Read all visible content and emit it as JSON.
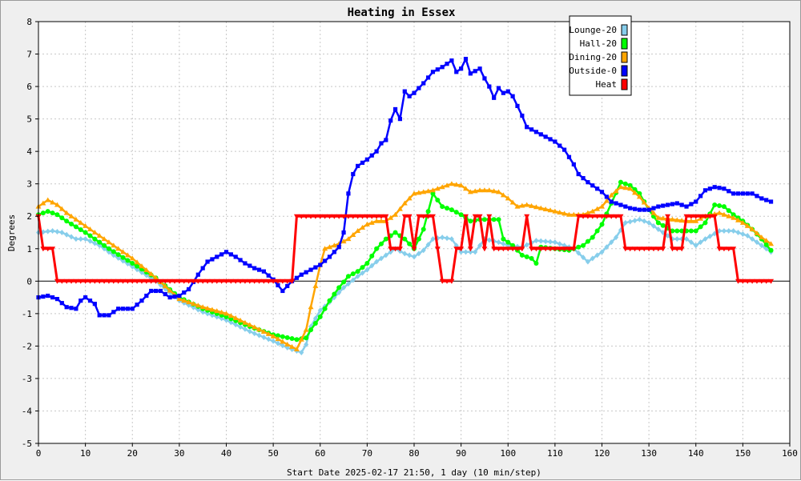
{
  "chart_data": {
    "type": "line",
    "title": "Heating in Essex",
    "xlabel": "Start Date 2025-02-17 21:50, 1 day (10 min/step)",
    "ylabel": "Degrees",
    "xlim": [
      0,
      160
    ],
    "ylim": [
      -5,
      8
    ],
    "x_ticks": [
      0,
      10,
      20,
      30,
      40,
      50,
      60,
      70,
      80,
      90,
      100,
      110,
      120,
      130,
      140,
      150,
      160
    ],
    "y_ticks": [
      -5,
      -4,
      -3,
      -2,
      -1,
      0,
      1,
      2,
      3,
      4,
      5,
      6,
      7,
      8
    ],
    "grid": true,
    "legend_position": "top-right",
    "series": [
      {
        "name": "Lounge-20",
        "color": "#87ceeb",
        "marker": "diamond",
        "points": [
          [
            0,
            1.5
          ],
          [
            3,
            1.55
          ],
          [
            5,
            1.5
          ],
          [
            8,
            1.3
          ],
          [
            10,
            1.3
          ],
          [
            13,
            1.1
          ],
          [
            16,
            0.8
          ],
          [
            20,
            0.45
          ],
          [
            25,
            0
          ],
          [
            30,
            -0.6
          ],
          [
            35,
            -0.95
          ],
          [
            40,
            -1.2
          ],
          [
            45,
            -1.55
          ],
          [
            50,
            -1.85
          ],
          [
            53,
            -2.05
          ],
          [
            56,
            -2.2
          ],
          [
            57,
            -1.95
          ],
          [
            58,
            -1.4
          ],
          [
            60,
            -0.9
          ],
          [
            62,
            -0.65
          ],
          [
            65,
            -0.2
          ],
          [
            68,
            0.15
          ],
          [
            70,
            0.35
          ],
          [
            72,
            0.6
          ],
          [
            74,
            0.8
          ],
          [
            76,
            1.0
          ],
          [
            78,
            0.85
          ],
          [
            80,
            0.75
          ],
          [
            82,
            0.95
          ],
          [
            84,
            1.3
          ],
          [
            86,
            1.35
          ],
          [
            88,
            1.3
          ],
          [
            90,
            0.9
          ],
          [
            93,
            0.9
          ],
          [
            95,
            1.3
          ],
          [
            98,
            1.2
          ],
          [
            100,
            1.1
          ],
          [
            103,
            1.05
          ],
          [
            106,
            1.25
          ],
          [
            110,
            1.2
          ],
          [
            114,
            1.0
          ],
          [
            117,
            0.6
          ],
          [
            120,
            0.9
          ],
          [
            123,
            1.35
          ],
          [
            125,
            1.8
          ],
          [
            128,
            1.9
          ],
          [
            130,
            1.8
          ],
          [
            133,
            1.5
          ],
          [
            135,
            1.3
          ],
          [
            138,
            1.3
          ],
          [
            140,
            1.1
          ],
          [
            142,
            1.3
          ],
          [
            145,
            1.55
          ],
          [
            148,
            1.55
          ],
          [
            151,
            1.4
          ],
          [
            154,
            1.1
          ],
          [
            156,
            0.9
          ]
        ]
      },
      {
        "name": "Hall-20",
        "color": "#00ff00",
        "marker": "circle",
        "points": [
          [
            0,
            2.05
          ],
          [
            2,
            2.15
          ],
          [
            4,
            2.05
          ],
          [
            6,
            1.85
          ],
          [
            10,
            1.5
          ],
          [
            15,
            1.0
          ],
          [
            20,
            0.55
          ],
          [
            25,
            0.1
          ],
          [
            30,
            -0.5
          ],
          [
            35,
            -0.85
          ],
          [
            40,
            -1.1
          ],
          [
            45,
            -1.4
          ],
          [
            50,
            -1.65
          ],
          [
            55,
            -1.8
          ],
          [
            57,
            -1.75
          ],
          [
            58,
            -1.5
          ],
          [
            60,
            -1.1
          ],
          [
            62,
            -0.6
          ],
          [
            64,
            -0.2
          ],
          [
            66,
            0.15
          ],
          [
            68,
            0.3
          ],
          [
            70,
            0.55
          ],
          [
            72,
            1.0
          ],
          [
            74,
            1.3
          ],
          [
            76,
            1.5
          ],
          [
            78,
            1.3
          ],
          [
            80,
            1.0
          ],
          [
            82,
            1.6
          ],
          [
            84,
            2.7
          ],
          [
            86,
            2.3
          ],
          [
            88,
            2.2
          ],
          [
            90,
            2.05
          ],
          [
            92,
            1.85
          ],
          [
            94,
            1.9
          ],
          [
            96,
            1.9
          ],
          [
            98,
            1.9
          ],
          [
            99,
            1.3
          ],
          [
            101,
            1.1
          ],
          [
            103,
            0.8
          ],
          [
            105,
            0.7
          ],
          [
            106,
            0.55
          ],
          [
            107,
            1.05
          ],
          [
            110,
            1.0
          ],
          [
            113,
            0.95
          ],
          [
            116,
            1.1
          ],
          [
            118,
            1.35
          ],
          [
            120,
            1.75
          ],
          [
            122,
            2.4
          ],
          [
            124,
            3.05
          ],
          [
            126,
            2.95
          ],
          [
            128,
            2.7
          ],
          [
            130,
            2.2
          ],
          [
            132,
            1.8
          ],
          [
            135,
            1.55
          ],
          [
            138,
            1.55
          ],
          [
            140,
            1.55
          ],
          [
            142,
            1.8
          ],
          [
            144,
            2.35
          ],
          [
            146,
            2.3
          ],
          [
            148,
            2.05
          ],
          [
            150,
            1.85
          ],
          [
            152,
            1.6
          ],
          [
            154,
            1.3
          ],
          [
            156,
            0.95
          ]
        ]
      },
      {
        "name": "Dining-20",
        "color": "#ffa500",
        "marker": "triangle",
        "points": [
          [
            0,
            2.3
          ],
          [
            2,
            2.5
          ],
          [
            4,
            2.35
          ],
          [
            6,
            2.1
          ],
          [
            10,
            1.7
          ],
          [
            15,
            1.2
          ],
          [
            20,
            0.7
          ],
          [
            25,
            0.1
          ],
          [
            30,
            -0.55
          ],
          [
            35,
            -0.8
          ],
          [
            40,
            -1.0
          ],
          [
            45,
            -1.35
          ],
          [
            50,
            -1.7
          ],
          [
            53,
            -1.95
          ],
          [
            55,
            -2.1
          ],
          [
            57,
            -1.5
          ],
          [
            58,
            -0.8
          ],
          [
            60,
            0.5
          ],
          [
            61,
            1.0
          ],
          [
            62,
            1.05
          ],
          [
            64,
            1.15
          ],
          [
            66,
            1.3
          ],
          [
            68,
            1.55
          ],
          [
            70,
            1.75
          ],
          [
            72,
            1.85
          ],
          [
            74,
            1.85
          ],
          [
            76,
            2.05
          ],
          [
            78,
            2.4
          ],
          [
            80,
            2.7
          ],
          [
            84,
            2.8
          ],
          [
            86,
            2.9
          ],
          [
            88,
            3.0
          ],
          [
            90,
            2.95
          ],
          [
            92,
            2.75
          ],
          [
            94,
            2.8
          ],
          [
            96,
            2.8
          ],
          [
            98,
            2.75
          ],
          [
            100,
            2.55
          ],
          [
            102,
            2.3
          ],
          [
            104,
            2.35
          ],
          [
            107,
            2.25
          ],
          [
            110,
            2.15
          ],
          [
            113,
            2.05
          ],
          [
            116,
            2.05
          ],
          [
            118,
            2.15
          ],
          [
            120,
            2.3
          ],
          [
            122,
            2.65
          ],
          [
            124,
            2.9
          ],
          [
            126,
            2.85
          ],
          [
            128,
            2.6
          ],
          [
            130,
            2.25
          ],
          [
            132,
            1.95
          ],
          [
            135,
            1.9
          ],
          [
            138,
            1.85
          ],
          [
            140,
            1.85
          ],
          [
            142,
            2.0
          ],
          [
            145,
            2.1
          ],
          [
            148,
            1.95
          ],
          [
            150,
            1.8
          ],
          [
            152,
            1.6
          ],
          [
            154,
            1.35
          ],
          [
            156,
            1.15
          ]
        ]
      },
      {
        "name": "Outside-0",
        "color": "#0000ff",
        "marker": "square",
        "points": [
          [
            0,
            -0.5
          ],
          [
            2,
            -0.45
          ],
          [
            4,
            -0.55
          ],
          [
            6,
            -0.8
          ],
          [
            8,
            -0.85
          ],
          [
            9,
            -0.6
          ],
          [
            10,
            -0.5
          ],
          [
            12,
            -0.7
          ],
          [
            13,
            -1.05
          ],
          [
            15,
            -1.05
          ],
          [
            17,
            -0.85
          ],
          [
            20,
            -0.85
          ],
          [
            22,
            -0.6
          ],
          [
            24,
            -0.3
          ],
          [
            26,
            -0.3
          ],
          [
            28,
            -0.5
          ],
          [
            30,
            -0.45
          ],
          [
            32,
            -0.25
          ],
          [
            34,
            0.2
          ],
          [
            36,
            0.6
          ],
          [
            38,
            0.75
          ],
          [
            40,
            0.9
          ],
          [
            42,
            0.75
          ],
          [
            44,
            0.55
          ],
          [
            46,
            0.4
          ],
          [
            48,
            0.3
          ],
          [
            50,
            0.05
          ],
          [
            52,
            -0.3
          ],
          [
            54,
            0.0
          ],
          [
            56,
            0.2
          ],
          [
            58,
            0.35
          ],
          [
            60,
            0.5
          ],
          [
            62,
            0.75
          ],
          [
            64,
            1.05
          ],
          [
            65,
            1.5
          ],
          [
            66,
            2.7
          ],
          [
            67,
            3.3
          ],
          [
            68,
            3.55
          ],
          [
            70,
            3.75
          ],
          [
            72,
            4.0
          ],
          [
            73,
            4.25
          ],
          [
            74,
            4.35
          ],
          [
            75,
            4.95
          ],
          [
            76,
            5.3
          ],
          [
            77,
            5.0
          ],
          [
            78,
            5.85
          ],
          [
            79,
            5.7
          ],
          [
            80,
            5.8
          ],
          [
            82,
            6.1
          ],
          [
            84,
            6.45
          ],
          [
            86,
            6.6
          ],
          [
            88,
            6.8
          ],
          [
            89,
            6.45
          ],
          [
            90,
            6.55
          ],
          [
            91,
            6.85
          ],
          [
            92,
            6.4
          ],
          [
            94,
            6.55
          ],
          [
            95,
            6.25
          ],
          [
            96,
            6.0
          ],
          [
            97,
            5.65
          ],
          [
            98,
            5.95
          ],
          [
            99,
            5.8
          ],
          [
            100,
            5.85
          ],
          [
            101,
            5.7
          ],
          [
            102,
            5.4
          ],
          [
            103,
            5.1
          ],
          [
            104,
            4.75
          ],
          [
            106,
            4.6
          ],
          [
            108,
            4.45
          ],
          [
            110,
            4.3
          ],
          [
            112,
            4.05
          ],
          [
            114,
            3.6
          ],
          [
            115,
            3.3
          ],
          [
            117,
            3.05
          ],
          [
            120,
            2.75
          ],
          [
            122,
            2.45
          ],
          [
            124,
            2.35
          ],
          [
            126,
            2.25
          ],
          [
            128,
            2.2
          ],
          [
            130,
            2.2
          ],
          [
            132,
            2.3
          ],
          [
            134,
            2.35
          ],
          [
            136,
            2.4
          ],
          [
            138,
            2.3
          ],
          [
            140,
            2.45
          ],
          [
            142,
            2.8
          ],
          [
            144,
            2.9
          ],
          [
            146,
            2.85
          ],
          [
            148,
            2.7
          ],
          [
            150,
            2.7
          ],
          [
            152,
            2.7
          ],
          [
            154,
            2.55
          ],
          [
            156,
            2.45
          ]
        ]
      },
      {
        "name": "Heat",
        "color": "#ff0000",
        "marker": "triangle-down",
        "points": [
          [
            0,
            2.0
          ],
          [
            1,
            1.0
          ],
          [
            3,
            1.0
          ],
          [
            4,
            0.0
          ],
          [
            54,
            0.0
          ],
          [
            55,
            2.0
          ],
          [
            74,
            2.0
          ],
          [
            75,
            1.0
          ],
          [
            77,
            1.0
          ],
          [
            78,
            2.0
          ],
          [
            79,
            2.0
          ],
          [
            80,
            1.0
          ],
          [
            81,
            2.0
          ],
          [
            84,
            2.0
          ],
          [
            86,
            0.0
          ],
          [
            88,
            0.0
          ],
          [
            89,
            1.0
          ],
          [
            90,
            1.0
          ],
          [
            91,
            2.0
          ],
          [
            92,
            1.0
          ],
          [
            93,
            2.0
          ],
          [
            94,
            2.0
          ],
          [
            95,
            1.0
          ],
          [
            96,
            2.0
          ],
          [
            97,
            1.0
          ],
          [
            103,
            1.0
          ],
          [
            104,
            2.0
          ],
          [
            105,
            1.0
          ],
          [
            114,
            1.0
          ],
          [
            115,
            2.0
          ],
          [
            124,
            2.0
          ],
          [
            125,
            1.0
          ],
          [
            133,
            1.0
          ],
          [
            134,
            2.0
          ],
          [
            135,
            1.0
          ],
          [
            137,
            1.0
          ],
          [
            138,
            2.0
          ],
          [
            144,
            2.0
          ],
          [
            145,
            1.0
          ],
          [
            148,
            1.0
          ],
          [
            149,
            0.0
          ],
          [
            156,
            0.0
          ]
        ]
      }
    ]
  }
}
